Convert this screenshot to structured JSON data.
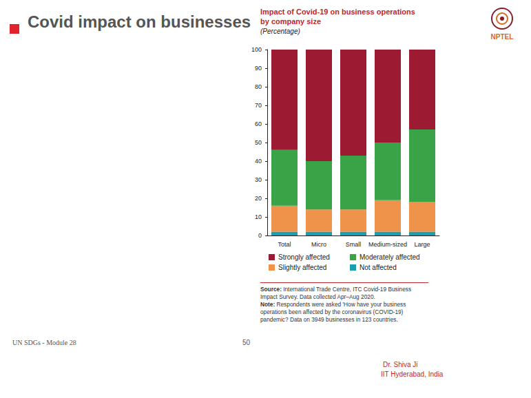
{
  "slide": {
    "title": "Covid impact on businesses",
    "footer": "UN SDGs - Module 28",
    "page": "50",
    "presenter": "Dr. Shiva Ji",
    "institution": "IIT Hyderabad, India",
    "logo": "NPTEL"
  },
  "chart_data": {
    "type": "bar",
    "stacked": true,
    "title": "Impact of Covid-19 on business operations by company size",
    "subtitle": "(Percentage)",
    "categories": [
      "Total",
      "Micro",
      "Small",
      "Medium-sized",
      "Large"
    ],
    "series": [
      {
        "name": "Not affected",
        "color": "#1b9eae",
        "values": [
          2,
          2,
          2,
          2,
          2
        ]
      },
      {
        "name": "Slightly affected",
        "color": "#f0934a",
        "values": [
          14,
          12,
          12,
          17,
          16
        ]
      },
      {
        "name": "Moderately affected",
        "color": "#3aa348",
        "values": [
          30,
          26,
          29,
          31,
          39
        ]
      },
      {
        "name": "Strongly affected",
        "color": "#9c1b32",
        "values": [
          54,
          60,
          57,
          50,
          43
        ]
      }
    ],
    "ylim": [
      0,
      100
    ],
    "yticks": [
      0,
      10,
      20,
      30,
      40,
      50,
      60,
      70,
      80,
      90,
      100
    ],
    "grid": false,
    "legend": "bottom",
    "source": "Source: International Trade Centre, ITC Covid-19 Business Impact Survey. Data collected Apr–Aug 2020.",
    "note": "Note: Respondents were asked 'How have your business operations been affected by the coronavirus (COVID-19) pandemic? Data on 3949 businesses in 123 countries."
  }
}
